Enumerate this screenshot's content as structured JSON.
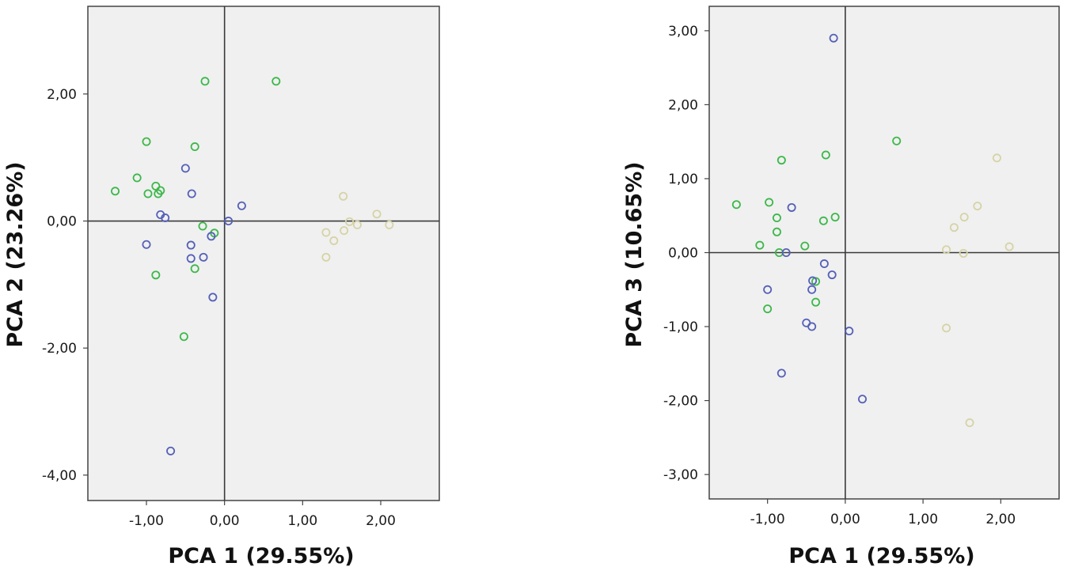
{
  "colors": {
    "plot_background": "#f0f0f0",
    "frame": "#444444",
    "zero_line": "#3a3a3a",
    "green_group": "#3cb84a",
    "blue_group": "#5560b8",
    "beige_group": "#d6d3a6"
  },
  "chart_data": [
    {
      "type": "scatter",
      "title": "",
      "xlabel": "PCA 1 (29.55%)",
      "ylabel": "PCA 2 (23.26%)",
      "xlim": [
        -1.75,
        2.75
      ],
      "ylim": [
        -4.4,
        3.38
      ],
      "xticks": [
        -1.0,
        0.0,
        1.0,
        2.0
      ],
      "xtick_labels": [
        "-1,00",
        "0,00",
        "1,00",
        "2,00"
      ],
      "yticks": [
        2.0,
        0.0,
        -2.0,
        -4.0
      ],
      "ytick_labels": [
        "2,00",
        "0,00",
        "-2,00",
        "-4,00"
      ],
      "reference_lines": {
        "x": 0,
        "y": 0
      },
      "grid": false,
      "legend": "none",
      "marker": "open circle",
      "series": [
        {
          "color": "#3cb84a",
          "points": [
            [
              -0.25,
              2.2
            ],
            [
              0.66,
              2.2
            ],
            [
              -1.0,
              1.25
            ],
            [
              -0.38,
              1.17
            ],
            [
              -1.12,
              0.68
            ],
            [
              -1.4,
              0.47
            ],
            [
              -0.98,
              0.43
            ],
            [
              -0.88,
              0.55
            ],
            [
              -0.85,
              0.43
            ],
            [
              -0.82,
              0.48
            ],
            [
              -0.28,
              -0.08
            ],
            [
              -0.13,
              -0.19
            ],
            [
              -0.38,
              -0.75
            ],
            [
              -0.88,
              -0.85
            ],
            [
              -0.52,
              -1.82
            ]
          ]
        },
        {
          "color": "#5560b8",
          "points": [
            [
              -0.5,
              0.83
            ],
            [
              -0.42,
              0.43
            ],
            [
              -0.82,
              0.1
            ],
            [
              -0.76,
              0.05
            ],
            [
              0.22,
              0.24
            ],
            [
              0.05,
              0.0
            ],
            [
              -0.17,
              -0.24
            ],
            [
              -1.0,
              -0.37
            ],
            [
              -0.43,
              -0.38
            ],
            [
              -0.43,
              -0.59
            ],
            [
              -0.27,
              -0.57
            ],
            [
              -0.15,
              -1.2
            ],
            [
              -0.69,
              -3.62
            ]
          ]
        },
        {
          "color": "#d6d3a6",
          "points": [
            [
              1.52,
              0.39
            ],
            [
              1.6,
              -0.01
            ],
            [
              1.95,
              0.11
            ],
            [
              1.7,
              -0.06
            ],
            [
              2.11,
              -0.06
            ],
            [
              1.3,
              -0.18
            ],
            [
              1.53,
              -0.15
            ],
            [
              1.4,
              -0.31
            ],
            [
              1.3,
              -0.57
            ]
          ]
        }
      ]
    },
    {
      "type": "scatter",
      "title": "",
      "xlabel": "PCA 1 (29.55%)",
      "ylabel": "PCA 3 (10.65%)",
      "xlim": [
        -1.75,
        2.75
      ],
      "ylim": [
        -3.33,
        3.33
      ],
      "xticks": [
        -1.0,
        0.0,
        1.0,
        2.0
      ],
      "xtick_labels": [
        "-1,00",
        "0,00",
        "1,00",
        "2,00"
      ],
      "yticks": [
        3.0,
        2.0,
        1.0,
        0.0,
        -1.0,
        -2.0,
        -3.0
      ],
      "ytick_labels": [
        "3,00",
        "2,00",
        "1,00",
        "0,00",
        "-1,00",
        "-2,00",
        "-3,00"
      ],
      "reference_lines": {
        "x": 0,
        "y": 0
      },
      "grid": false,
      "legend": "none",
      "marker": "open circle",
      "series": [
        {
          "color": "#3cb84a",
          "points": [
            [
              0.66,
              1.51
            ],
            [
              -0.25,
              1.32
            ],
            [
              -0.82,
              1.25
            ],
            [
              -1.4,
              0.65
            ],
            [
              -0.98,
              0.68
            ],
            [
              -0.88,
              0.47
            ],
            [
              -0.13,
              0.48
            ],
            [
              -0.28,
              0.43
            ],
            [
              -0.88,
              0.28
            ],
            [
              -1.1,
              0.1
            ],
            [
              -0.85,
              0.0
            ],
            [
              -0.52,
              0.09
            ],
            [
              -0.38,
              -0.39
            ],
            [
              -0.38,
              -0.67
            ],
            [
              -1.0,
              -0.76
            ]
          ]
        },
        {
          "color": "#5560b8",
          "points": [
            [
              -0.15,
              2.9
            ],
            [
              -0.69,
              0.61
            ],
            [
              -0.76,
              0.0
            ],
            [
              -0.27,
              -0.15
            ],
            [
              -0.17,
              -0.3
            ],
            [
              -0.42,
              -0.38
            ],
            [
              -0.43,
              -0.5
            ],
            [
              -1.0,
              -0.5
            ],
            [
              -0.5,
              -0.95
            ],
            [
              -0.43,
              -1.0
            ],
            [
              0.05,
              -1.06
            ],
            [
              -0.82,
              -1.63
            ],
            [
              0.22,
              -1.98
            ]
          ]
        },
        {
          "color": "#d6d3a6",
          "points": [
            [
              1.95,
              1.28
            ],
            [
              1.7,
              0.63
            ],
            [
              1.53,
              0.48
            ],
            [
              1.4,
              0.34
            ],
            [
              2.11,
              0.08
            ],
            [
              1.3,
              0.04
            ],
            [
              1.52,
              -0.01
            ],
            [
              1.3,
              -1.02
            ],
            [
              1.6,
              -2.3
            ]
          ]
        }
      ]
    }
  ]
}
